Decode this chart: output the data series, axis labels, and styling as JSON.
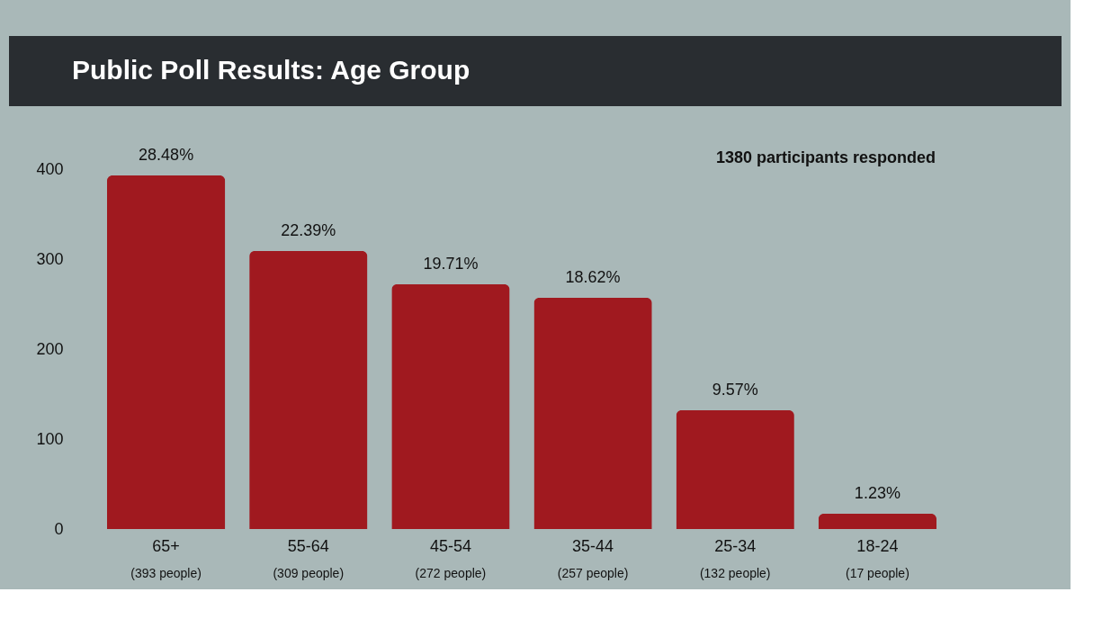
{
  "chart_data": {
    "type": "bar",
    "title": "Public Poll Results: Age Group",
    "categories": [
      "65+",
      "55-64",
      "45-54",
      "35-44",
      "25-34",
      "18-24"
    ],
    "values": [
      393,
      309,
      272,
      257,
      132,
      17
    ],
    "value_labels": [
      "(393 people)",
      "(309 people)",
      "(272 people)",
      "(257 people)",
      "(132 people)",
      "(17 people)"
    ],
    "color": "#a0191f",
    "ylim": [
      0,
      400
    ],
    "yticks": [
      0,
      100,
      200,
      300,
      400
    ],
    "grid": false,
    "annotations": [
      "1380 participants responded",
      {
        "text": "28.48%",
        "x": "65+",
        "y": 393
      },
      {
        "text": "22.39%",
        "x": "55-64",
        "y": 309
      },
      {
        "text": "19.71%",
        "x": "45-54",
        "y": 272
      },
      {
        "text": "18.62%",
        "x": "35-44",
        "y": 257
      },
      {
        "text": "9.57%",
        "x": "25-34",
        "y": 132
      },
      {
        "text": "1.23%",
        "x": "18-24",
        "y": 17
      }
    ]
  }
}
